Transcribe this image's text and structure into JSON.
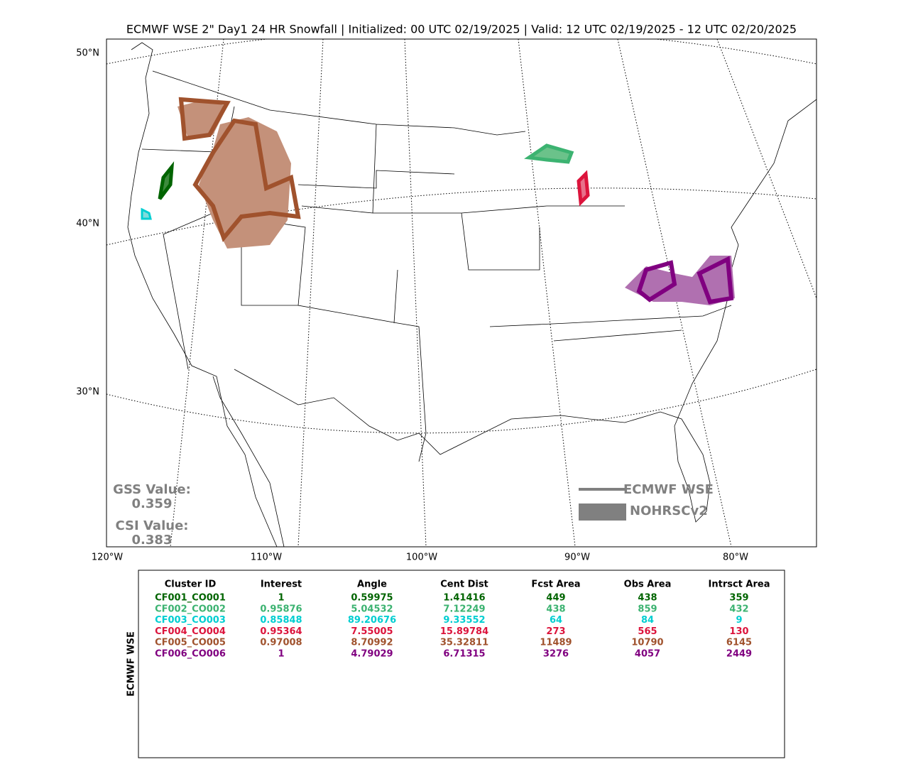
{
  "title": "ECMWF WSE 2\" Day1 24 HR Snowfall | Initialized: 00 UTC 02/19/2025 | Valid: 12 UTC 02/19/2025 - 12 UTC 02/20/2025",
  "map": {
    "lat_labels": [
      "50°N",
      "40°N",
      "30°N"
    ],
    "lon_labels": [
      "120°W",
      "110°W",
      "100°W",
      "90°W",
      "80°W"
    ]
  },
  "scores": {
    "gss_label": "GSS Value:",
    "gss": "0.359",
    "csi_label": "CSI Value:",
    "csi": "0.383"
  },
  "legend": [
    {
      "label": "ECMWF WSE",
      "color": "#808080"
    },
    {
      "label": "NOHRSCv2",
      "color": "#808080"
    }
  ],
  "table": {
    "side_label": "ECMWF WSE",
    "columns": [
      "Cluster ID",
      "Interest",
      "Angle",
      "Cent Dist",
      "Fcst Area",
      "Obs Area",
      "Intrsct Area"
    ],
    "rows": [
      {
        "color": "#006400",
        "cells": [
          "CF001_CO001",
          "1",
          "0.59975",
          "1.41416",
          "449",
          "438",
          "359"
        ]
      },
      {
        "color": "#3cb371",
        "cells": [
          "CF002_CO002",
          "0.95876",
          "5.04532",
          "7.12249",
          "438",
          "859",
          "432"
        ]
      },
      {
        "color": "#00ced1",
        "cells": [
          "CF003_CO003",
          "0.85848",
          "89.20676",
          "9.33552",
          "64",
          "84",
          "9"
        ]
      },
      {
        "color": "#dc143c",
        "cells": [
          "CF004_CO004",
          "0.95364",
          "7.55005",
          "15.89784",
          "273",
          "565",
          "130"
        ]
      },
      {
        "color": "#a0522d",
        "cells": [
          "CF005_CO005",
          "0.97008",
          "8.70992",
          "35.32811",
          "11489",
          "10790",
          "6145"
        ]
      },
      {
        "color": "#800080",
        "cells": [
          "CF006_CO006",
          "1",
          "4.79029",
          "6.71315",
          "3276",
          "4057",
          "2449"
        ]
      }
    ]
  }
}
